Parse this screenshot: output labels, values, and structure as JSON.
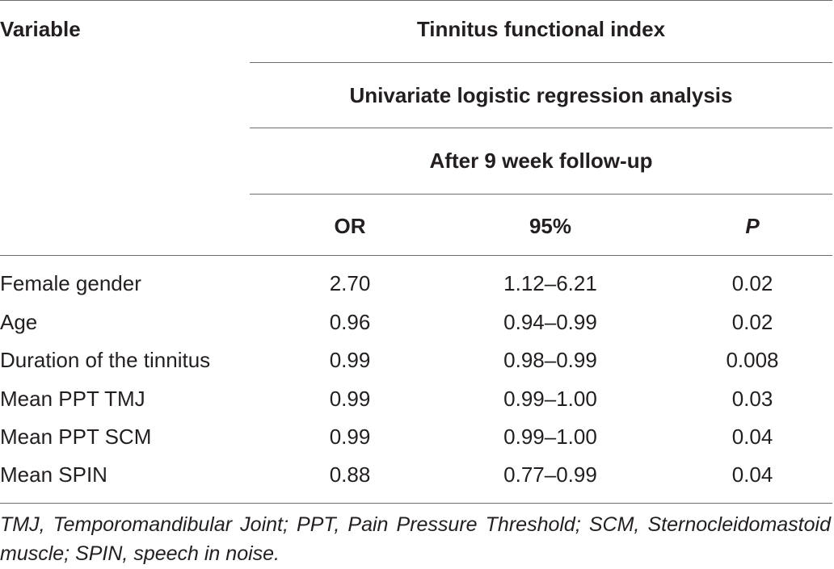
{
  "table": {
    "header": {
      "variable_label": "Variable",
      "group_title": "Tinnitus functional index",
      "analysis_title": "Univariate logistic regression analysis",
      "timepoint_title": "After 9 week follow-up",
      "columns": [
        "OR",
        "95%",
        "P"
      ]
    },
    "rows": [
      {
        "variable": "Female gender",
        "or": "2.70",
        "ci": "1.12–6.21",
        "p": "0.02"
      },
      {
        "variable": "Age",
        "or": "0.96",
        "ci": "0.94–0.99",
        "p": "0.02"
      },
      {
        "variable": "Duration of the tinnitus",
        "or": "0.99",
        "ci": "0.98–0.99",
        "p": "0.008"
      },
      {
        "variable": "Mean PPT TMJ",
        "or": "0.99",
        "ci": "0.99–1.00",
        "p": "0.03"
      },
      {
        "variable": "Mean PPT SCM",
        "or": "0.99",
        "ci": "0.99–1.00",
        "p": "0.04"
      },
      {
        "variable": "Mean SPIN",
        "or": "0.88",
        "ci": "0.77–0.99",
        "p": "0.04"
      }
    ],
    "footnote": "TMJ, Temporomandibular Joint; PPT, Pain Pressure Threshold; SCM, Sternocleidomastoid muscle; SPIN, speech in noise."
  }
}
